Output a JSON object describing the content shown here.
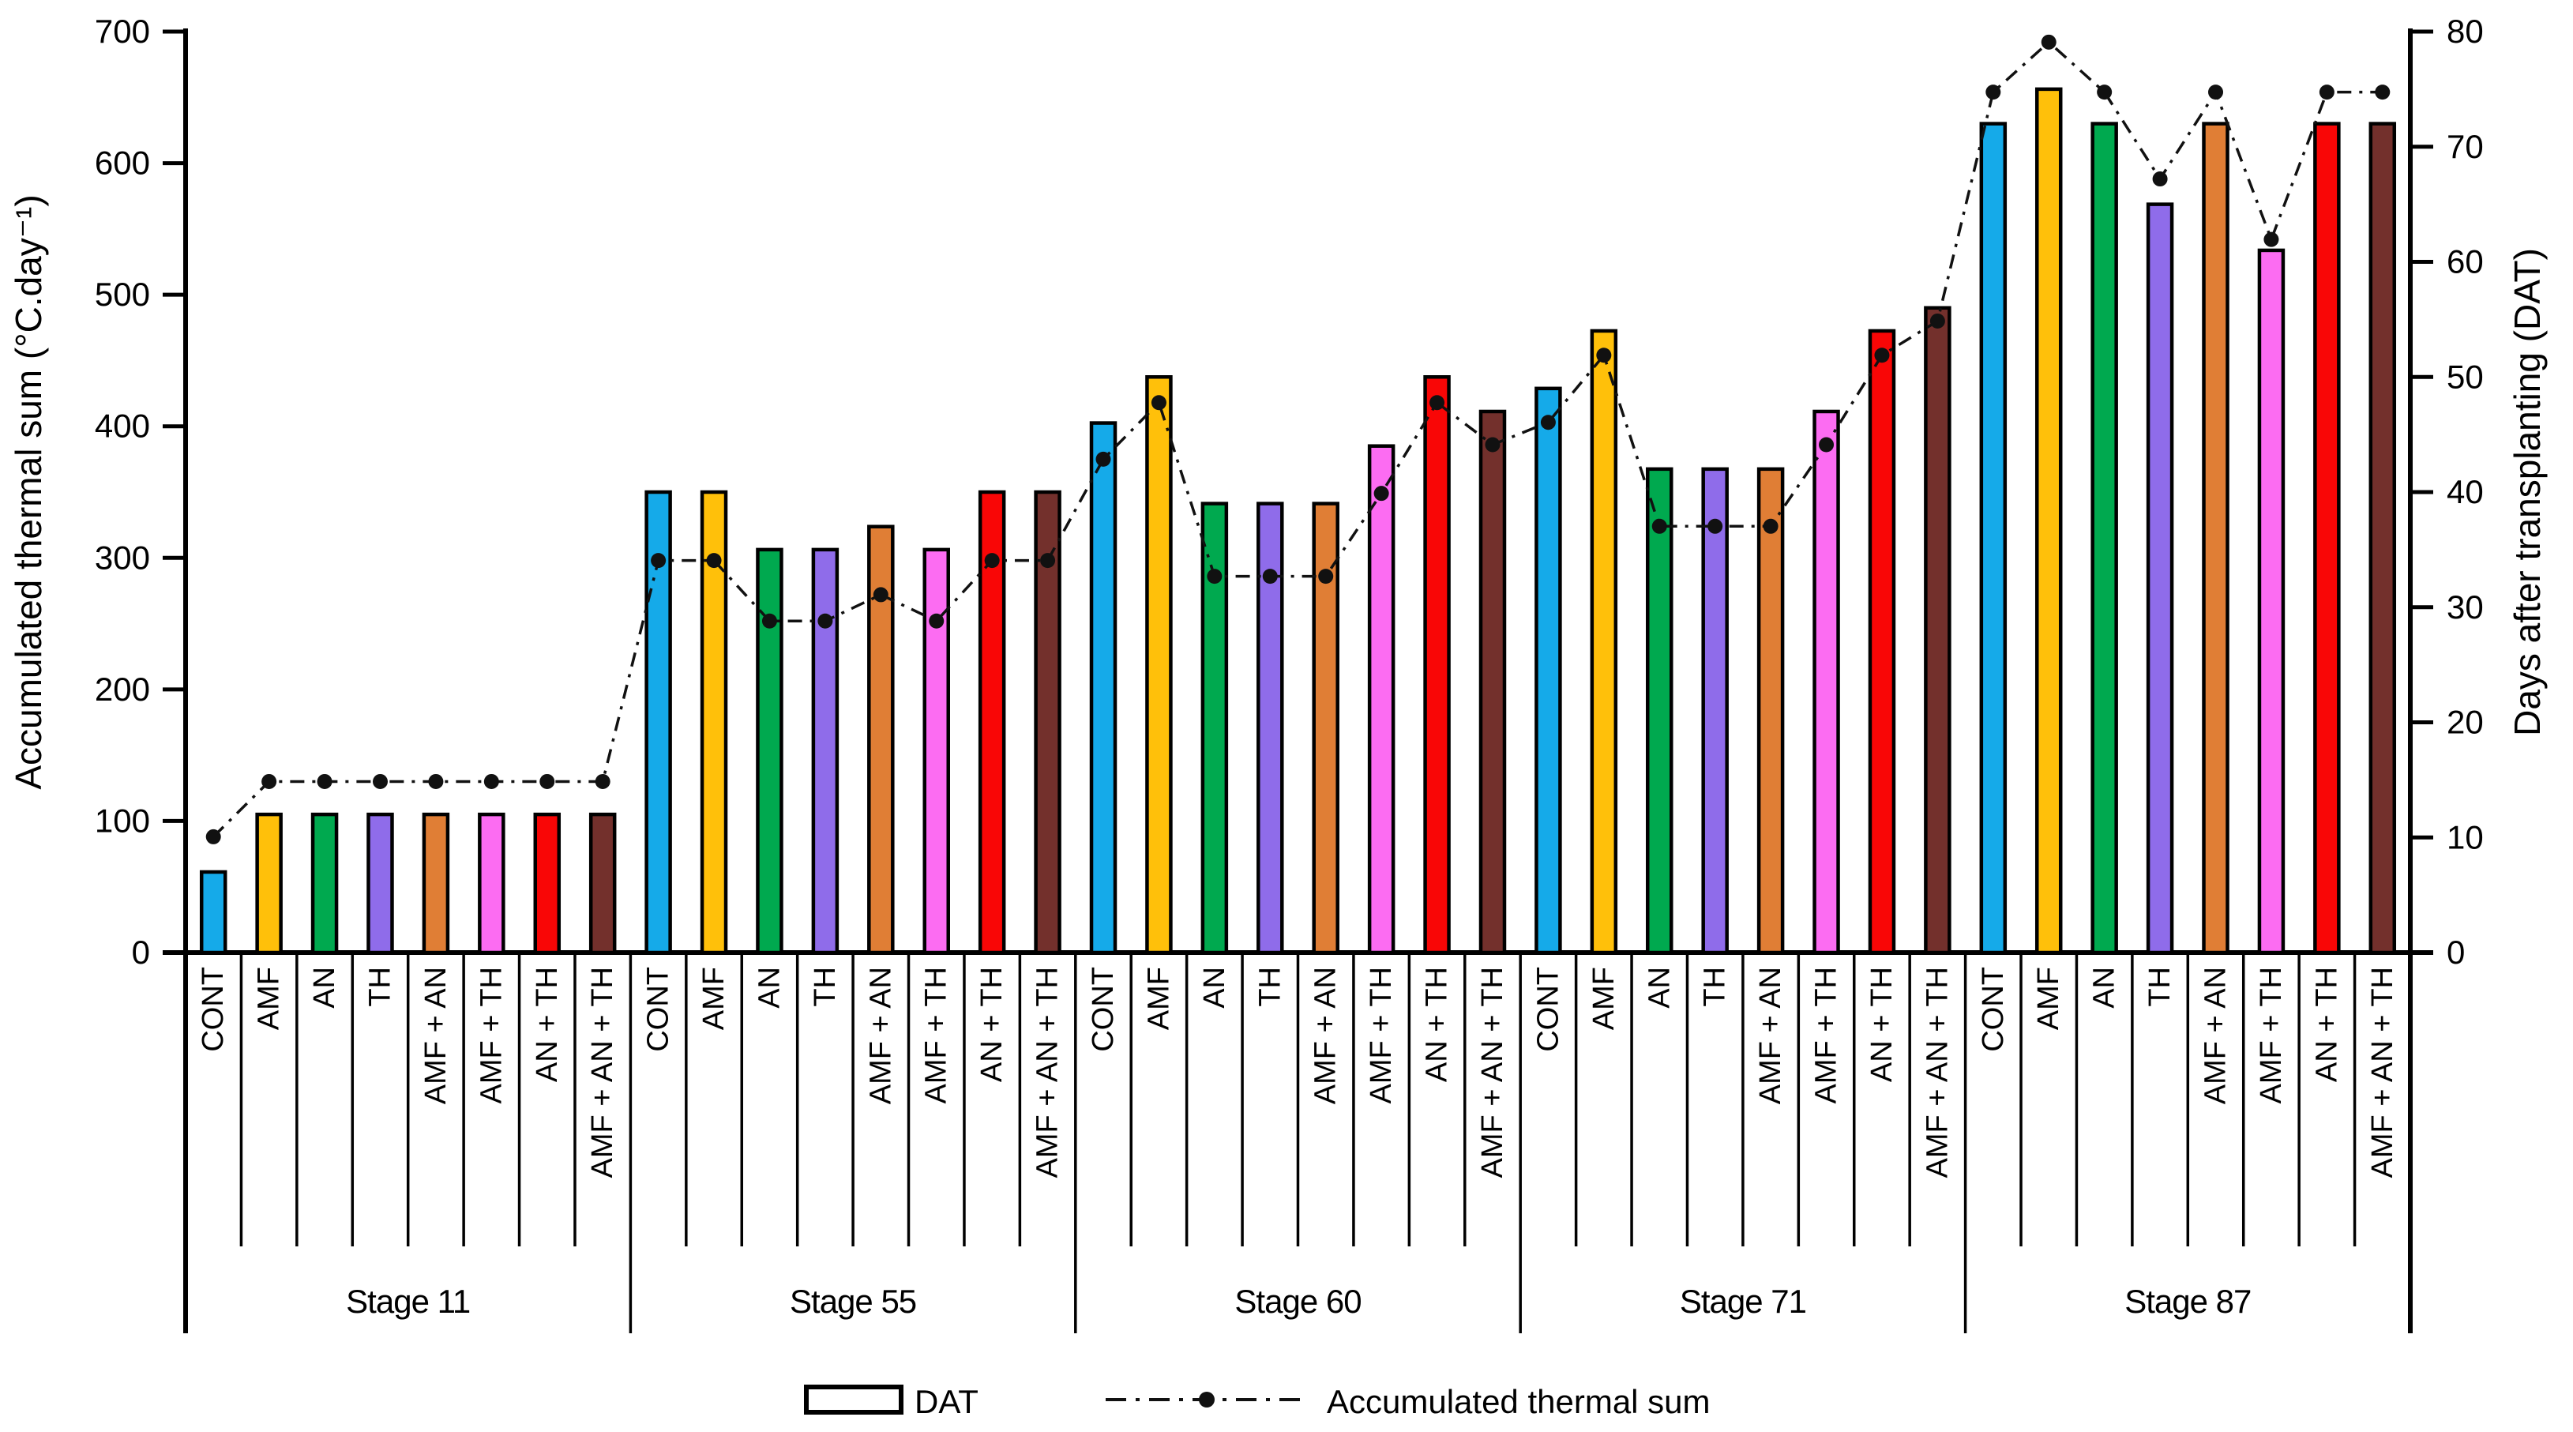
{
  "chart_data": {
    "type": "combo-bar-line",
    "title": "",
    "left_axis": {
      "title": "Accumulated thermal sum (°C.day⁻¹)",
      "min": 0,
      "max": 700,
      "step": 100
    },
    "right_axis": {
      "title": "Days after transplanting (DAT)",
      "min": 0,
      "max": 80,
      "step": 10
    },
    "treatments": [
      {
        "label": "CONT",
        "color": "#15AAE9"
      },
      {
        "label": "AMF",
        "color": "#FFC00A"
      },
      {
        "label": "AN",
        "color": "#00A94F"
      },
      {
        "label": "TH",
        "color": "#8F6CEA"
      },
      {
        "label": "AMF + AN",
        "color": "#E07E35"
      },
      {
        "label": "AMF + TH",
        "color": "#FC6CF2"
      },
      {
        "label": "AN + TH",
        "color": "#F90606"
      },
      {
        "label": "AMF + AN + TH",
        "color": "#73302C"
      }
    ],
    "stages": [
      {
        "label": "Stage 11",
        "dat": [
          7,
          12,
          12,
          12,
          12,
          12,
          12,
          12
        ],
        "thermal_sum": [
          88,
          130,
          130,
          130,
          130,
          130,
          130,
          130
        ]
      },
      {
        "label": "Stage 55",
        "dat": [
          40,
          40,
          35,
          35,
          37,
          35,
          40,
          40
        ],
        "thermal_sum": [
          298,
          298,
          252,
          252,
          272,
          252,
          298,
          298
        ]
      },
      {
        "label": "Stage 60",
        "dat": [
          46,
          50,
          39,
          39,
          39,
          44,
          50,
          47
        ],
        "thermal_sum": [
          375,
          418,
          286,
          286,
          286,
          349,
          418,
          386
        ]
      },
      {
        "label": "Stage 71",
        "dat": [
          49,
          54,
          42,
          42,
          42,
          47,
          54,
          56
        ],
        "thermal_sum": [
          403,
          454,
          324,
          324,
          324,
          386,
          454,
          480
        ]
      },
      {
        "label": "Stage 87",
        "dat": [
          72,
          75,
          72,
          65,
          72,
          61,
          72,
          72
        ],
        "thermal_sum": [
          654,
          692,
          654,
          588,
          654,
          542,
          654,
          654
        ]
      }
    ],
    "bar_series_name": "DAT",
    "line_series_name": "Accumulated thermal sum",
    "line_color": "#111111",
    "bar_outline_color": "#000000",
    "legend": [
      {
        "label": "DAT",
        "marker": "bar-swatch"
      },
      {
        "label": "Accumulated thermal sum",
        "marker": "dashdot-line-dot"
      }
    ]
  }
}
